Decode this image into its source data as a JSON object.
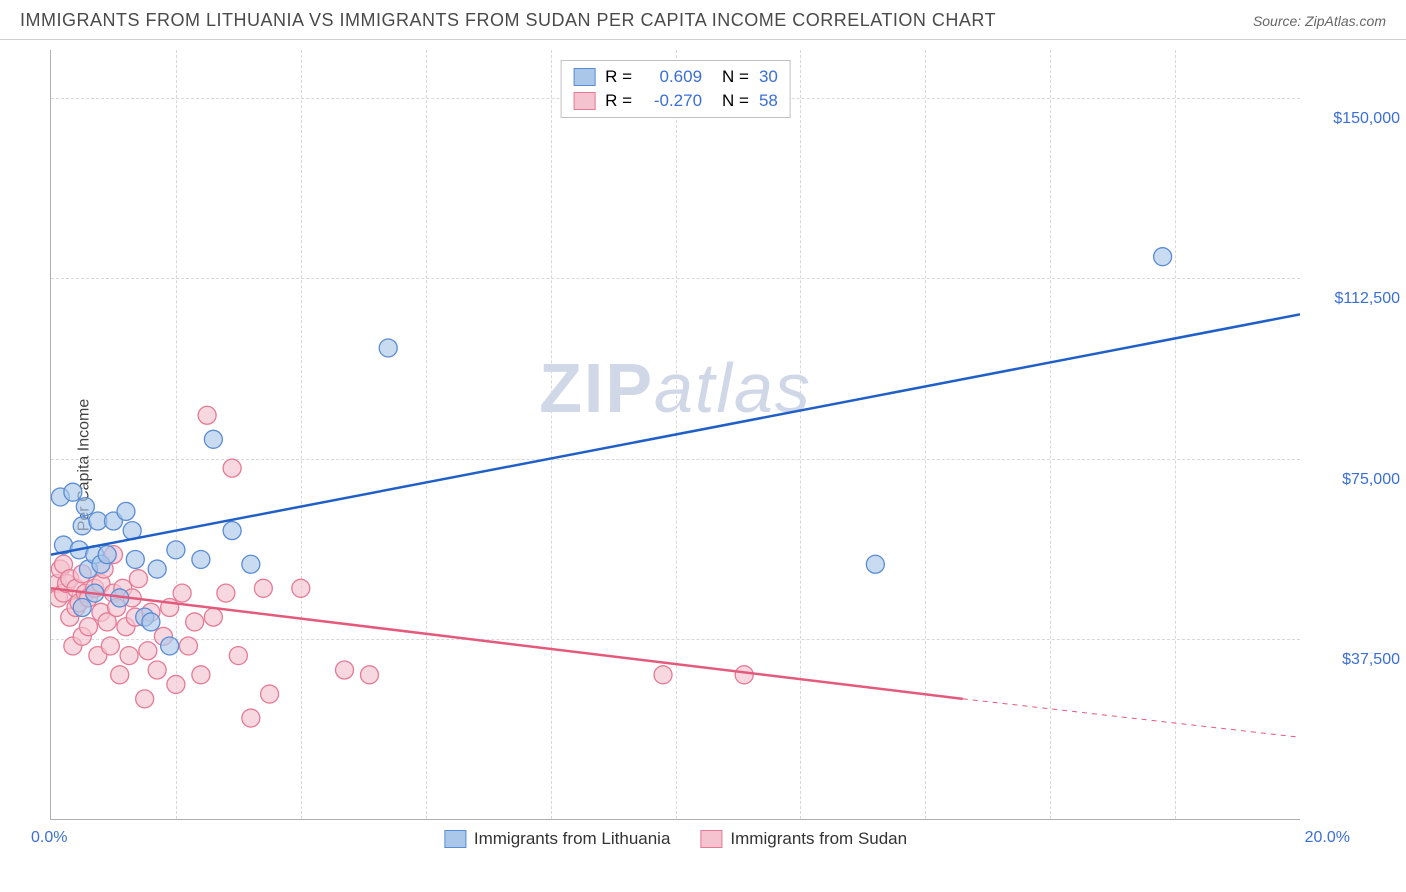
{
  "header": {
    "title": "IMMIGRANTS FROM LITHUANIA VS IMMIGRANTS FROM SUDAN PER CAPITA INCOME CORRELATION CHART",
    "source_label": "Source:",
    "source_name": "ZipAtlas.com"
  },
  "chart": {
    "type": "scatter",
    "ylabel": "Per Capita Income",
    "watermark_a": "ZIP",
    "watermark_b": "atlas",
    "background_color": "#ffffff",
    "grid_color": "#d8d8d8",
    "axis_color": "#b0b0b0",
    "xlim": [
      0,
      20
    ],
    "ylim": [
      0,
      160000
    ],
    "xtick_left": "0.0%",
    "xtick_right": "20.0%",
    "yticks": [
      {
        "val": 37500,
        "label": "$37,500"
      },
      {
        "val": 75000,
        "label": "$75,000"
      },
      {
        "val": 112500,
        "label": "$112,500"
      },
      {
        "val": 150000,
        "label": "$150,000"
      }
    ],
    "xgrid": [
      2,
      4,
      6,
      8,
      10,
      12,
      14,
      16,
      18
    ],
    "series": [
      {
        "name": "Immigrants from Lithuania",
        "fill": "#aac7ea",
        "stroke": "#5a8cd6",
        "line_color": "#1f5fc7",
        "R": 0.609,
        "R_label": "0.609",
        "N": 30,
        "N_label": "30",
        "trend": {
          "x1": 0,
          "y1": 55000,
          "x2": 20,
          "y2": 105000,
          "dashed": false
        },
        "points": [
          [
            0.15,
            67000
          ],
          [
            0.2,
            57000
          ],
          [
            0.35,
            68000
          ],
          [
            0.45,
            56000
          ],
          [
            0.5,
            61000
          ],
          [
            0.5,
            44000
          ],
          [
            0.55,
            65000
          ],
          [
            0.6,
            52000
          ],
          [
            0.7,
            47000
          ],
          [
            0.7,
            55000
          ],
          [
            0.75,
            62000
          ],
          [
            0.8,
            53000
          ],
          [
            0.9,
            55000
          ],
          [
            1.0,
            62000
          ],
          [
            1.1,
            46000
          ],
          [
            1.2,
            64000
          ],
          [
            1.3,
            60000
          ],
          [
            1.35,
            54000
          ],
          [
            1.5,
            42000
          ],
          [
            1.6,
            41000
          ],
          [
            1.7,
            52000
          ],
          [
            1.9,
            36000
          ],
          [
            2.0,
            56000
          ],
          [
            2.4,
            54000
          ],
          [
            2.6,
            79000
          ],
          [
            2.9,
            60000
          ],
          [
            3.2,
            53000
          ],
          [
            5.4,
            98000
          ],
          [
            13.2,
            53000
          ],
          [
            17.8,
            117000
          ]
        ]
      },
      {
        "name": "Immigrants from Sudan",
        "fill": "#f5c3cf",
        "stroke": "#e67a95",
        "line_color": "#e45a7d",
        "R": -0.27,
        "R_label": "-0.270",
        "N": 58,
        "N_label": "58",
        "trend": {
          "x1": 0,
          "y1": 48000,
          "x2": 14.6,
          "y2": 25000,
          "dashed": false
        },
        "trend_ext": {
          "x1": 14.6,
          "y1": 25000,
          "x2": 20,
          "y2": 17000
        },
        "points": [
          [
            0.1,
            49000
          ],
          [
            0.12,
            46000
          ],
          [
            0.15,
            52000
          ],
          [
            0.2,
            53000
          ],
          [
            0.2,
            47000
          ],
          [
            0.25,
            49000
          ],
          [
            0.3,
            42000
          ],
          [
            0.3,
            50000
          ],
          [
            0.35,
            36000
          ],
          [
            0.4,
            48000
          ],
          [
            0.4,
            44000
          ],
          [
            0.45,
            45000
          ],
          [
            0.5,
            51000
          ],
          [
            0.5,
            38000
          ],
          [
            0.55,
            47000
          ],
          [
            0.6,
            46000
          ],
          [
            0.6,
            40000
          ],
          [
            0.7,
            48000
          ],
          [
            0.75,
            34000
          ],
          [
            0.8,
            49000
          ],
          [
            0.8,
            43000
          ],
          [
            0.85,
            52000
          ],
          [
            0.9,
            41000
          ],
          [
            0.95,
            36000
          ],
          [
            1.0,
            47000
          ],
          [
            1.0,
            55000
          ],
          [
            1.05,
            44000
          ],
          [
            1.1,
            30000
          ],
          [
            1.15,
            48000
          ],
          [
            1.2,
            40000
          ],
          [
            1.25,
            34000
          ],
          [
            1.3,
            46000
          ],
          [
            1.35,
            42000
          ],
          [
            1.4,
            50000
          ],
          [
            1.5,
            25000
          ],
          [
            1.55,
            35000
          ],
          [
            1.6,
            43000
          ],
          [
            1.7,
            31000
          ],
          [
            1.8,
            38000
          ],
          [
            1.9,
            44000
          ],
          [
            2.0,
            28000
          ],
          [
            2.1,
            47000
          ],
          [
            2.2,
            36000
          ],
          [
            2.3,
            41000
          ],
          [
            2.4,
            30000
          ],
          [
            2.5,
            84000
          ],
          [
            2.6,
            42000
          ],
          [
            2.8,
            47000
          ],
          [
            2.9,
            73000
          ],
          [
            3.0,
            34000
          ],
          [
            3.2,
            21000
          ],
          [
            3.4,
            48000
          ],
          [
            3.5,
            26000
          ],
          [
            4.0,
            48000
          ],
          [
            4.7,
            31000
          ],
          [
            5.1,
            30000
          ],
          [
            9.8,
            30000
          ],
          [
            11.1,
            30000
          ]
        ]
      }
    ],
    "legend_top": {
      "R_prefix": "R =",
      "N_prefix": "N ="
    },
    "marker_radius": 9,
    "marker_opacity": 0.65,
    "line_width": 2.5
  }
}
